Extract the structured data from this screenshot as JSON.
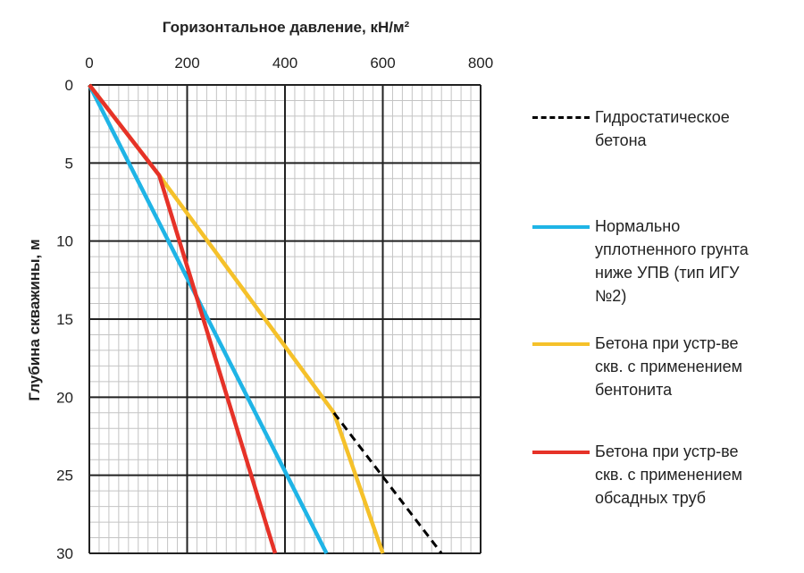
{
  "chart_data": {
    "type": "line",
    "title": "",
    "xlabel": "Горизонтальное давление, кН/м²",
    "ylabel": "Глубина скважины, м",
    "x_axis_position": "top",
    "y_axis_inverted": true,
    "xlim": [
      0,
      800
    ],
    "ylim": [
      0,
      30
    ],
    "x_ticks": [
      "0",
      "200",
      "400",
      "600",
      "800"
    ],
    "y_ticks": [
      "0",
      "5",
      "10",
      "15",
      "20",
      "25",
      "30"
    ],
    "grid": true,
    "legend_position": "right",
    "series": [
      {
        "name": "Гидростатическое бетона",
        "color": "#000000",
        "style": "dashed",
        "points": [
          {
            "x": 500,
            "y": 21
          },
          {
            "x": 720,
            "y": 30
          }
        ]
      },
      {
        "name": "Нормально уплотненного грунта ниже УПВ (тип ИГУ №2)",
        "color": "#1fb4e6",
        "style": "solid",
        "points": [
          {
            "x": 0,
            "y": 0
          },
          {
            "x": 485,
            "y": 30
          }
        ]
      },
      {
        "name": "Бетона при устр-ве скв. с применением бентонита",
        "color": "#f5c12a",
        "style": "solid",
        "points": [
          {
            "x": 0,
            "y": 0
          },
          {
            "x": 143,
            "y": 5.8
          },
          {
            "x": 500,
            "y": 21
          },
          {
            "x": 600,
            "y": 30
          }
        ]
      },
      {
        "name": "Бетона при устр-ве скв. с применением обсадных труб",
        "color": "#e63228",
        "style": "solid",
        "points": [
          {
            "x": 0,
            "y": 0
          },
          {
            "x": 143,
            "y": 5.8
          },
          {
            "x": 380,
            "y": 30
          }
        ]
      }
    ]
  },
  "legend": [
    {
      "label": "Гидростатическое\nбетона",
      "color": "#000000",
      "style": "dashed"
    },
    {
      "label": "Нормально\nуплотненного грунта\nниже УПВ (тип ИГУ\n№2)",
      "color": "#1fb4e6",
      "style": "solid"
    },
    {
      "label": "Бетона при устр-ве\nскв. с применением\nбентонита",
      "color": "#f5c12a",
      "style": "solid"
    },
    {
      "label": "Бетона при устр-ве\nскв. с применением\nобсадных труб",
      "color": "#e63228",
      "style": "solid"
    }
  ]
}
